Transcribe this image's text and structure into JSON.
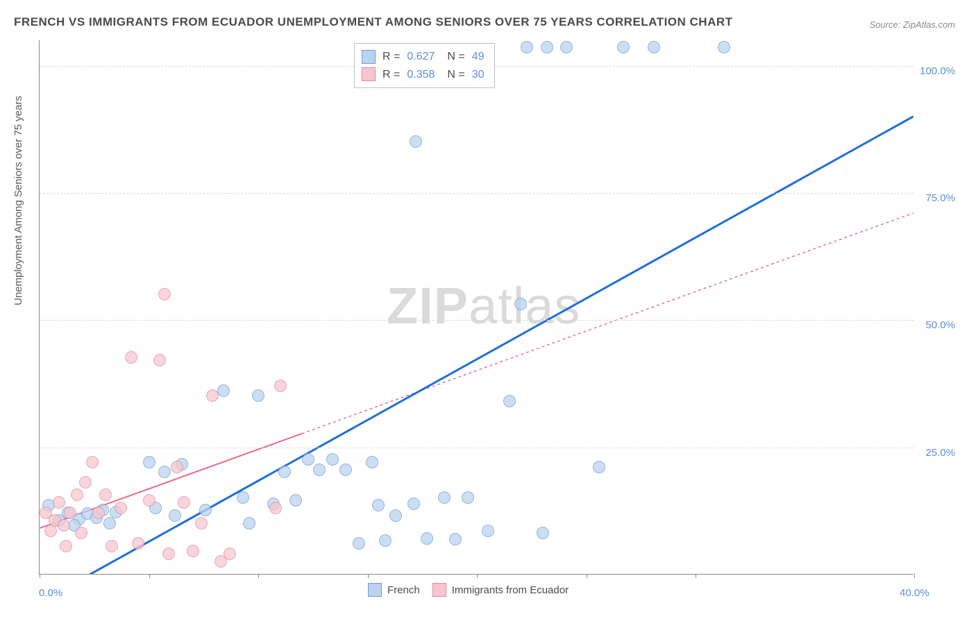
{
  "title": "FRENCH VS IMMIGRANTS FROM ECUADOR UNEMPLOYMENT AMONG SENIORS OVER 75 YEARS CORRELATION CHART",
  "source": "Source: ZipAtlas.com",
  "y_axis_label": "Unemployment Among Seniors over 75 years",
  "watermark": {
    "zip": "ZIP",
    "atlas": "atlas"
  },
  "chart": {
    "type": "scatter",
    "background_color": "#ffffff",
    "grid_color": "#d8d8d8",
    "axis_color": "#888888",
    "tick_label_color": "#5b8fd6",
    "tick_fontsize": 15,
    "xlim": [
      0,
      40
    ],
    "ylim": [
      0,
      105
    ],
    "x_ticks": [
      0,
      5,
      10,
      15,
      20,
      25,
      30,
      40
    ],
    "x_tick_labels": {
      "0": "0.0%",
      "40": "40.0%"
    },
    "y_ticks": [
      25,
      50,
      75,
      100
    ],
    "y_tick_labels": {
      "25": "25.0%",
      "50": "50.0%",
      "75": "75.0%",
      "100": "100.0%"
    },
    "series": [
      {
        "name": "French",
        "R": "0.627",
        "N": "49",
        "marker_fill": "#bcd3ef",
        "marker_stroke": "#6e9dd4",
        "marker_size": 18,
        "line_color": "#1f6fd6",
        "line_width": 3,
        "line_dash": "none",
        "trend": {
          "x1": 1.5,
          "y1": -2,
          "x2": 40,
          "y2": 90
        },
        "points": [
          {
            "x": 0.4,
            "y": 13.5
          },
          {
            "x": 0.9,
            "y": 10.5
          },
          {
            "x": 1.3,
            "y": 12
          },
          {
            "x": 1.8,
            "y": 10.8
          },
          {
            "x": 1.6,
            "y": 9.5
          },
          {
            "x": 2.2,
            "y": 11.8
          },
          {
            "x": 2.6,
            "y": 11.0
          },
          {
            "x": 2.9,
            "y": 12.5
          },
          {
            "x": 3.2,
            "y": 10
          },
          {
            "x": 3.5,
            "y": 12.2
          },
          {
            "x": 5.0,
            "y": 22
          },
          {
            "x": 5.3,
            "y": 13
          },
          {
            "x": 5.7,
            "y": 20
          },
          {
            "x": 6.2,
            "y": 11.5
          },
          {
            "x": 6.5,
            "y": 21.5
          },
          {
            "x": 7.6,
            "y": 12.5
          },
          {
            "x": 8.4,
            "y": 36
          },
          {
            "x": 9.3,
            "y": 15
          },
          {
            "x": 9.6,
            "y": 10
          },
          {
            "x": 10.0,
            "y": 35
          },
          {
            "x": 10.7,
            "y": 13.8
          },
          {
            "x": 11.2,
            "y": 20
          },
          {
            "x": 11.7,
            "y": 14.5
          },
          {
            "x": 12.3,
            "y": 22.5
          },
          {
            "x": 12.8,
            "y": 20.5
          },
          {
            "x": 13.4,
            "y": 22.5
          },
          {
            "x": 14.0,
            "y": 20.5
          },
          {
            "x": 14.6,
            "y": 6
          },
          {
            "x": 15.2,
            "y": 22
          },
          {
            "x": 15.5,
            "y": 13.5
          },
          {
            "x": 15.8,
            "y": 6.5
          },
          {
            "x": 16.3,
            "y": 11.5
          },
          {
            "x": 17.1,
            "y": 13.8
          },
          {
            "x": 17.7,
            "y": 7
          },
          {
            "x": 18.5,
            "y": 15
          },
          {
            "x": 19.0,
            "y": 6.8
          },
          {
            "x": 19.6,
            "y": 15
          },
          {
            "x": 20.5,
            "y": 8.5
          },
          {
            "x": 17.2,
            "y": 85
          },
          {
            "x": 21.5,
            "y": 34
          },
          {
            "x": 22.0,
            "y": 53
          },
          {
            "x": 22.3,
            "y": 103.5
          },
          {
            "x": 23.2,
            "y": 103.5
          },
          {
            "x": 24.1,
            "y": 103.5
          },
          {
            "x": 25.6,
            "y": 21
          },
          {
            "x": 26.7,
            "y": 103.5
          },
          {
            "x": 28.1,
            "y": 103.5
          },
          {
            "x": 31.3,
            "y": 103.5
          },
          {
            "x": 23.0,
            "y": 8
          }
        ]
      },
      {
        "name": "Immigrants from Ecuador",
        "R": "0.358",
        "N": "30",
        "marker_fill": "#f6c6d0",
        "marker_stroke": "#e48aa0",
        "marker_size": 18,
        "line_color": "#e86a8a",
        "line_width": 2,
        "line_dash": "4 4",
        "trend_solid_end": 12,
        "trend": {
          "x1": 0,
          "y1": 9,
          "x2": 40,
          "y2": 71
        },
        "points": [
          {
            "x": 0.3,
            "y": 12.0
          },
          {
            "x": 0.5,
            "y": 8.5
          },
          {
            "x": 0.7,
            "y": 10.5
          },
          {
            "x": 0.9,
            "y": 14
          },
          {
            "x": 1.1,
            "y": 9.5
          },
          {
            "x": 1.2,
            "y": 5.5
          },
          {
            "x": 1.4,
            "y": 12
          },
          {
            "x": 1.7,
            "y": 15.5
          },
          {
            "x": 1.9,
            "y": 8
          },
          {
            "x": 2.1,
            "y": 18
          },
          {
            "x": 2.4,
            "y": 22
          },
          {
            "x": 2.7,
            "y": 12
          },
          {
            "x": 3.0,
            "y": 15.5
          },
          {
            "x": 3.3,
            "y": 5.5
          },
          {
            "x": 3.7,
            "y": 13
          },
          {
            "x": 4.2,
            "y": 42.5
          },
          {
            "x": 4.5,
            "y": 6
          },
          {
            "x": 5.0,
            "y": 14.5
          },
          {
            "x": 5.5,
            "y": 42
          },
          {
            "x": 5.7,
            "y": 55
          },
          {
            "x": 5.9,
            "y": 4
          },
          {
            "x": 6.3,
            "y": 21
          },
          {
            "x": 6.6,
            "y": 14
          },
          {
            "x": 7.0,
            "y": 4.5
          },
          {
            "x": 7.4,
            "y": 10
          },
          {
            "x": 7.9,
            "y": 35
          },
          {
            "x": 8.3,
            "y": 2.5
          },
          {
            "x": 8.7,
            "y": 4
          },
          {
            "x": 10.8,
            "y": 13
          },
          {
            "x": 11.0,
            "y": 37
          }
        ]
      }
    ],
    "legend_bottom": [
      {
        "label": "French",
        "fill": "#bcd3ef",
        "stroke": "#6e9dd4"
      },
      {
        "label": "Immigrants from Ecuador",
        "fill": "#f6c6d0",
        "stroke": "#e48aa0"
      }
    ],
    "legend_top": {
      "r_label": "R =",
      "n_label": "N ="
    }
  }
}
